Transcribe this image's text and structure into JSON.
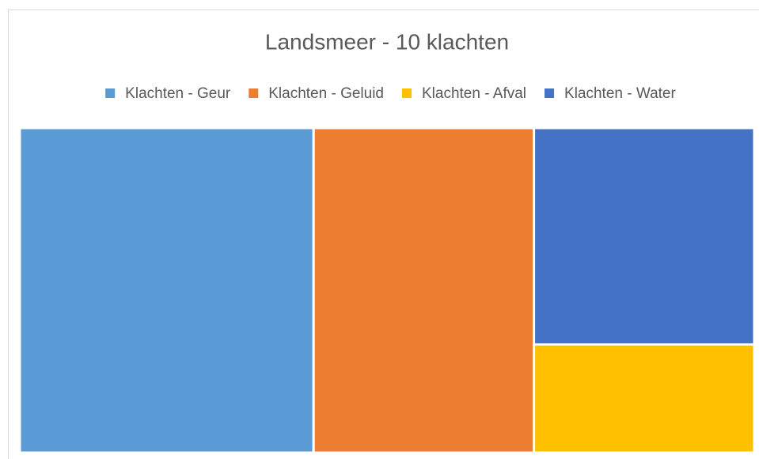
{
  "chart_data": {
    "type": "treemap",
    "title": "Landsmeer - 10 klachten",
    "categories": [
      "Klachten - Geur",
      "Klachten - Geluid",
      "Klachten - Afval",
      "Klachten - Water"
    ],
    "values": [
      4,
      3,
      1,
      2
    ],
    "colors": [
      "#5b9bd5",
      "#ed7d31",
      "#ffc000",
      "#4472c4"
    ],
    "legend": "top"
  }
}
